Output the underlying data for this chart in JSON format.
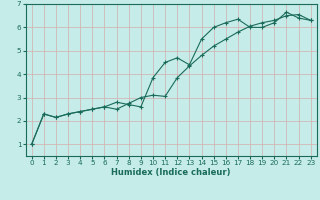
{
  "title": "",
  "xlabel": "Humidex (Indice chaleur)",
  "background_color": "#c5ece8",
  "grid_color": "#d4aeae",
  "line_color": "#1a6b5a",
  "xlim": [
    -0.5,
    23.5
  ],
  "ylim": [
    0.5,
    7.0
  ],
  "yticks": [
    1,
    2,
    3,
    4,
    5,
    6,
    7
  ],
  "xticks": [
    0,
    1,
    2,
    3,
    4,
    5,
    6,
    7,
    8,
    9,
    10,
    11,
    12,
    13,
    14,
    15,
    16,
    17,
    18,
    19,
    20,
    21,
    22,
    23
  ],
  "series1_x": [
    0,
    1,
    2,
    3,
    4,
    5,
    6,
    7,
    8,
    9,
    10,
    11,
    12,
    13,
    14,
    15,
    16,
    17,
    18,
    19,
    20,
    21,
    22,
    23
  ],
  "series1_y": [
    1.0,
    2.3,
    2.15,
    2.3,
    2.4,
    2.5,
    2.6,
    2.8,
    2.7,
    2.6,
    3.85,
    4.5,
    4.7,
    4.4,
    5.5,
    6.0,
    6.2,
    6.35,
    6.0,
    6.0,
    6.2,
    6.65,
    6.4,
    6.3
  ],
  "series2_x": [
    0,
    1,
    2,
    3,
    4,
    5,
    6,
    7,
    8,
    9,
    10,
    11,
    12,
    13,
    14,
    15,
    16,
    17,
    18,
    19,
    20,
    21,
    22,
    23
  ],
  "series2_y": [
    1.0,
    2.3,
    2.15,
    2.3,
    2.4,
    2.5,
    2.6,
    2.5,
    2.75,
    3.0,
    3.1,
    3.05,
    3.85,
    4.35,
    4.8,
    5.2,
    5.5,
    5.8,
    6.05,
    6.2,
    6.3,
    6.5,
    6.55,
    6.3
  ],
  "xlabel_fontsize": 6.0,
  "tick_fontsize": 5.2
}
